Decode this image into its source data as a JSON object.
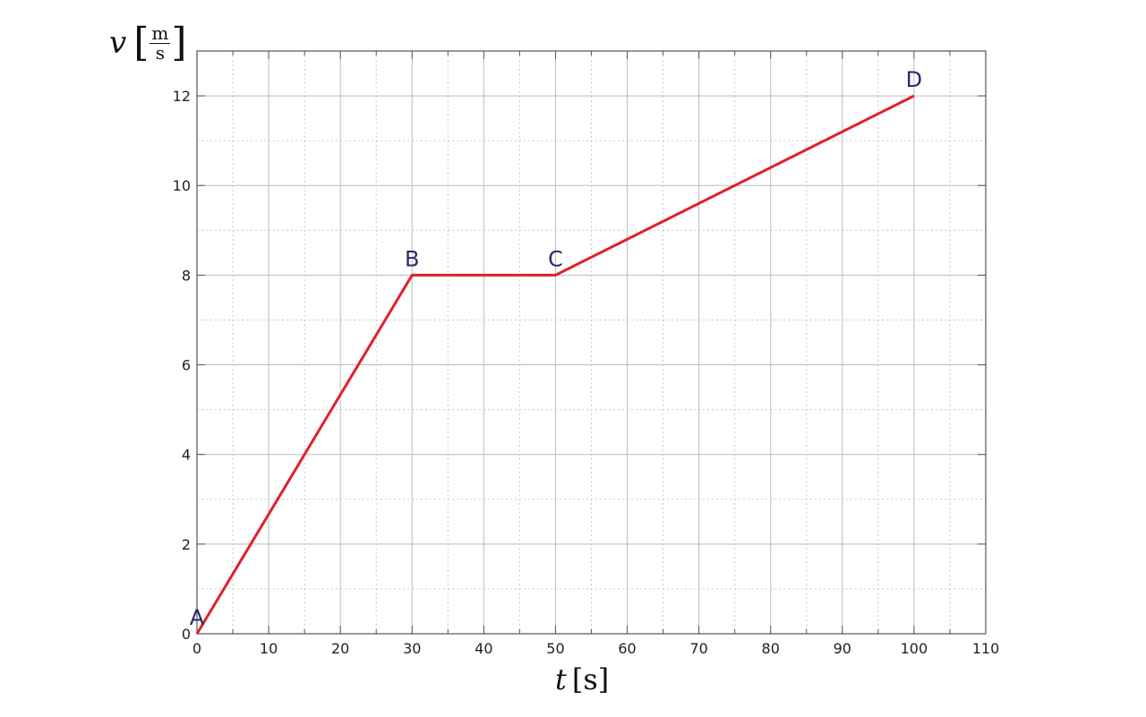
{
  "chart_data": {
    "type": "line",
    "x": [
      0,
      30,
      50,
      100
    ],
    "values": [
      0,
      8,
      8,
      12
    ],
    "point_labels": [
      "A",
      "B",
      "C",
      "D"
    ],
    "xlabel": {
      "var": "t",
      "unit": "s"
    },
    "ylabel": {
      "var": "v",
      "unit_num": "m",
      "unit den": "s",
      "unit_den": "s"
    },
    "xlim": [
      0,
      110
    ],
    "ylim": [
      0,
      13
    ],
    "xticks": [
      0,
      10,
      20,
      30,
      40,
      50,
      60,
      70,
      80,
      90,
      100,
      110
    ],
    "yticks": [
      0,
      2,
      4,
      6,
      8,
      10,
      12
    ],
    "grid": true,
    "minor_grid": "dotted",
    "line_color": "#e0202a",
    "label_color": "#2a2a6a"
  }
}
